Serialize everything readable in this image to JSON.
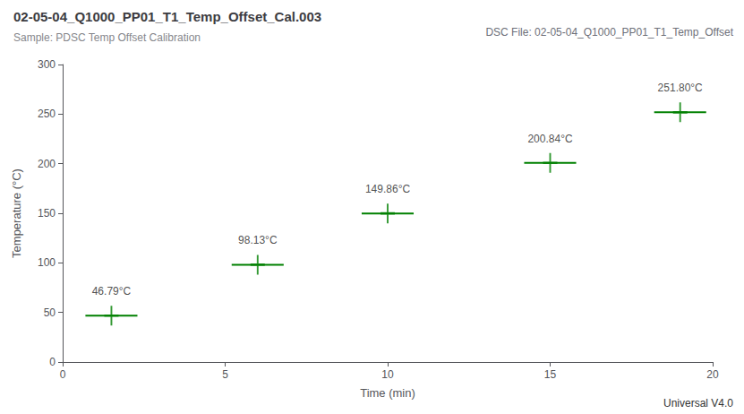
{
  "chart_data": {
    "type": "scatter",
    "title": "02-05-04_Q1000_PP01_T1_Temp_Offset_Cal.003",
    "subtitle": "Sample: PDSC Temp Offset Calibration",
    "annotations": [
      "DSC File: 02-05-04_Q1000_PP01_T1_Temp_Offset",
      "Universal V4.0"
    ],
    "xlabel": "Time (min)",
    "ylabel": "Temperature (°C)",
    "x": [
      1.5,
      6.0,
      10.0,
      15.0,
      19.0
    ],
    "values": [
      46.79,
      98.13,
      149.86,
      200.84,
      251.8
    ],
    "value_labels": [
      "46.79°C",
      "98.13°C",
      "149.86°C",
      "200.84°C",
      "251.80°C"
    ],
    "data_labels": true,
    "line_xmin": [
      0.7,
      5.2,
      9.2,
      14.2,
      18.2
    ],
    "line_xmax": [
      2.3,
      6.8,
      10.8,
      15.8,
      19.8
    ],
    "color": "#008000",
    "marker": "cross",
    "xlim": [
      0,
      20
    ],
    "ylim": [
      0,
      300
    ],
    "xticks": [
      0,
      5,
      10,
      15,
      20
    ],
    "yticks": [
      0,
      50,
      100,
      150,
      200,
      250,
      300
    ],
    "grid": false
  }
}
